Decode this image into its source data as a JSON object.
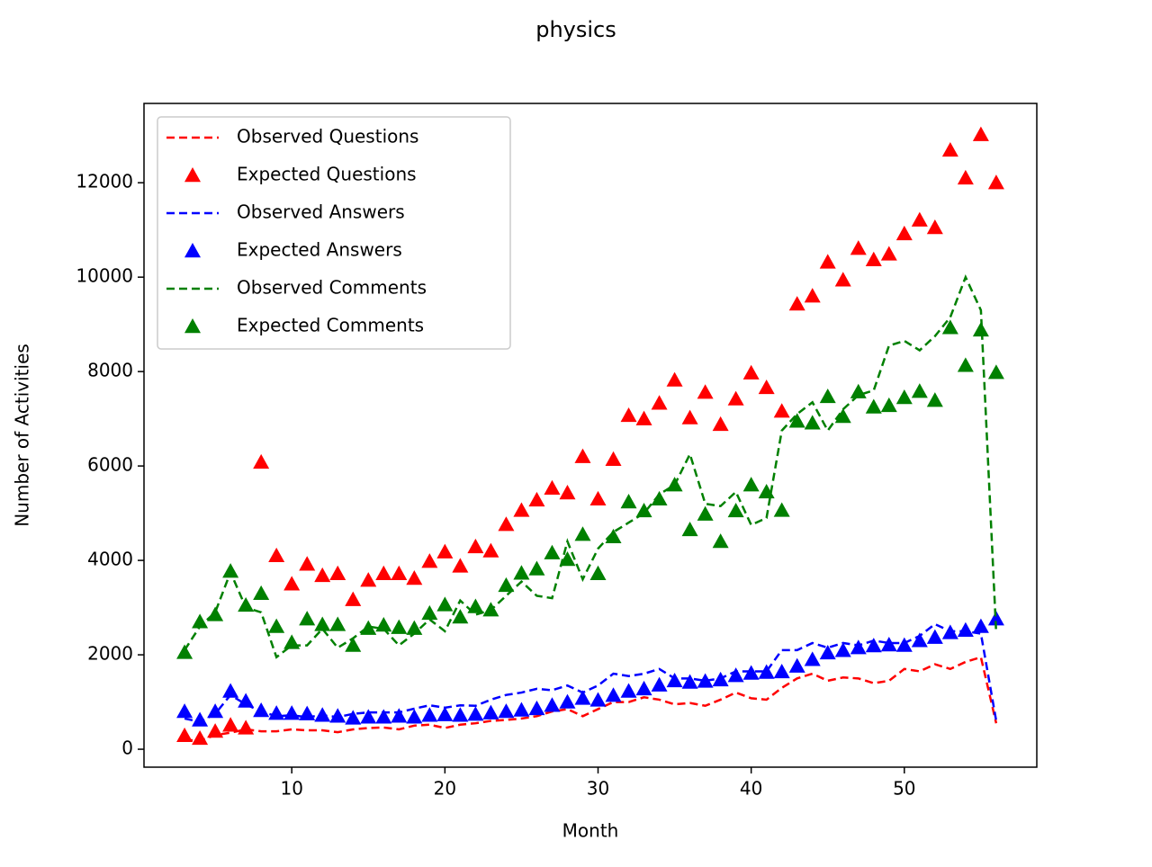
{
  "chart_data": {
    "type": "line",
    "title": "physics",
    "xlabel": "Month",
    "ylabel": "Number of Activities",
    "x": [
      3,
      4,
      5,
      6,
      7,
      8,
      9,
      10,
      11,
      12,
      13,
      14,
      15,
      16,
      17,
      18,
      19,
      20,
      21,
      22,
      23,
      24,
      25,
      26,
      27,
      28,
      29,
      30,
      31,
      32,
      33,
      34,
      35,
      36,
      37,
      38,
      39,
      40,
      41,
      42,
      43,
      44,
      45,
      46,
      47,
      48,
      49,
      50,
      51,
      52,
      53,
      54,
      55,
      56
    ],
    "series": [
      {
        "name": "Observed Questions",
        "color": "#ff0000",
        "style": "dashed",
        "values": [
          200,
          180,
          300,
          350,
          420,
          380,
          380,
          420,
          400,
          400,
          360,
          420,
          450,
          460,
          420,
          500,
          520,
          450,
          520,
          550,
          600,
          620,
          650,
          700,
          800,
          850,
          700,
          850,
          1000,
          1000,
          1100,
          1050,
          950,
          980,
          920,
          1050,
          1200,
          1080,
          1050,
          1300,
          1500,
          1600,
          1450,
          1520,
          1500,
          1400,
          1450,
          1700,
          1650,
          1800,
          1700,
          1850,
          1950,
          550
        ]
      },
      {
        "name": "Expected Questions",
        "color": "#ff0000",
        "style": "triangle",
        "values": [
          290,
          230,
          380,
          510,
          450,
          6080,
          4100,
          3500,
          3920,
          3680,
          3720,
          3170,
          3580,
          3720,
          3720,
          3620,
          3980,
          4180,
          3880,
          4290,
          4200,
          4760,
          5060,
          5280,
          5530,
          5430,
          6200,
          5300,
          6140,
          7070,
          7000,
          7330,
          7820,
          7020,
          7560,
          6880,
          7420,
          7970,
          7660,
          7160,
          9430,
          9600,
          10320,
          9940,
          10610,
          10370,
          10490,
          10920,
          11210,
          11050,
          12690,
          12100,
          13020,
          12000
        ]
      },
      {
        "name": "Observed Answers",
        "color": "#0000ff",
        "style": "dashed",
        "values": [
          650,
          580,
          750,
          1150,
          950,
          800,
          700,
          720,
          680,
          720,
          680,
          750,
          780,
          780,
          780,
          860,
          930,
          880,
          930,
          920,
          1050,
          1150,
          1200,
          1280,
          1250,
          1350,
          1200,
          1350,
          1600,
          1550,
          1600,
          1700,
          1500,
          1500,
          1450,
          1500,
          1650,
          1650,
          1650,
          2100,
          2100,
          2250,
          2150,
          2250,
          2200,
          2300,
          2250,
          2250,
          2400,
          2650,
          2500,
          2500,
          2450,
          600
        ]
      },
      {
        "name": "Expected Answers",
        "color": "#0000ff",
        "style": "triangle",
        "values": [
          800,
          620,
          800,
          1230,
          1020,
          820,
          760,
          760,
          750,
          720,
          700,
          660,
          680,
          680,
          700,
          680,
          720,
          730,
          720,
          740,
          770,
          800,
          830,
          860,
          930,
          1000,
          1080,
          1040,
          1140,
          1230,
          1280,
          1360,
          1450,
          1420,
          1440,
          1470,
          1560,
          1610,
          1630,
          1640,
          1760,
          1900,
          2040,
          2090,
          2150,
          2190,
          2210,
          2200,
          2300,
          2370,
          2470,
          2520,
          2600,
          2760
        ]
      },
      {
        "name": "Observed Comments",
        "color": "#008000",
        "style": "dashed",
        "values": [
          2100,
          2600,
          2900,
          3750,
          3000,
          2900,
          1950,
          2200,
          2200,
          2550,
          2150,
          2350,
          2600,
          2550,
          2200,
          2450,
          2750,
          2500,
          3150,
          2850,
          2950,
          3250,
          3550,
          3250,
          3200,
          4400,
          3600,
          4250,
          4600,
          4800,
          5000,
          5400,
          5600,
          6250,
          5200,
          5150,
          5450,
          4750,
          4900,
          6750,
          7100,
          7350,
          6750,
          7200,
          7500,
          7600,
          8550,
          8650,
          8450,
          8750,
          9150,
          10000,
          9300,
          2450
        ]
      },
      {
        "name": "Expected Comments",
        "color": "#008000",
        "style": "triangle",
        "values": [
          2050,
          2700,
          2850,
          3770,
          3050,
          3300,
          2600,
          2260,
          2760,
          2640,
          2640,
          2200,
          2560,
          2630,
          2580,
          2560,
          2880,
          3060,
          2800,
          3020,
          2950,
          3470,
          3730,
          3820,
          4160,
          4020,
          4550,
          3720,
          4500,
          5240,
          5050,
          5300,
          5600,
          4650,
          4980,
          4400,
          5050,
          5600,
          5450,
          5060,
          6950,
          6910,
          7470,
          7050,
          7570,
          7250,
          7280,
          7450,
          7580,
          7390,
          8930,
          8130,
          8880,
          7980
        ]
      }
    ],
    "xlim": [
      0.35,
      58.65
    ],
    "xticks": [
      10,
      20,
      30,
      40,
      50
    ],
    "ylim": [
      -380,
      13680
    ],
    "yticks": [
      0,
      2000,
      4000,
      6000,
      8000,
      10000,
      12000
    ],
    "legend": "upper left"
  }
}
